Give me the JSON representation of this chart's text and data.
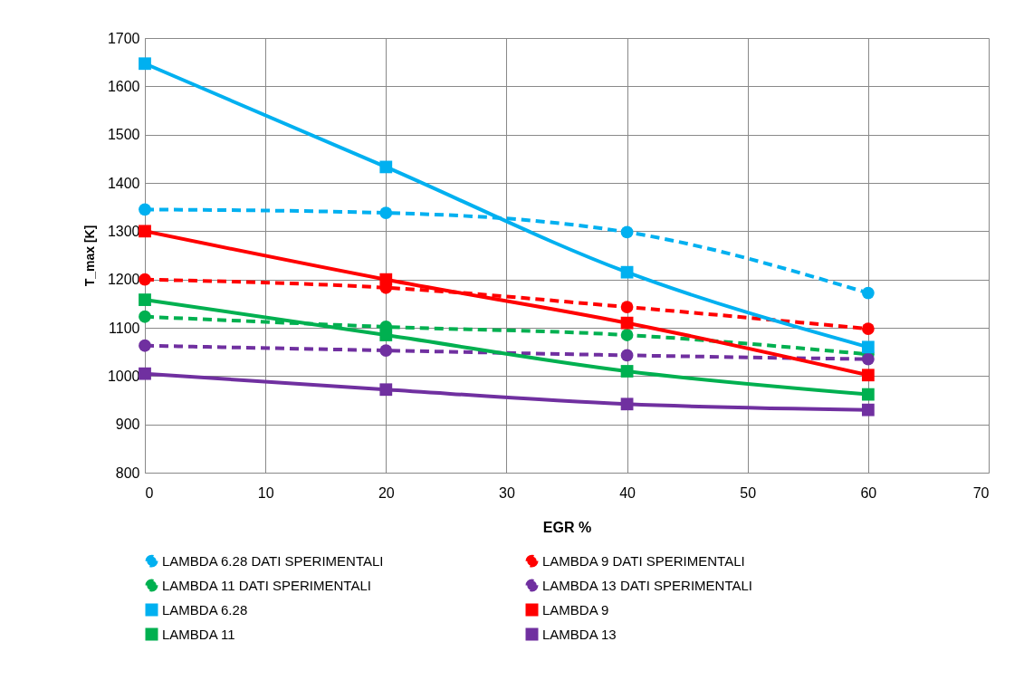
{
  "chart_data": {
    "type": "line",
    "xlabel": "EGR %",
    "ylabel": "T_max [K]",
    "x": [
      0,
      20,
      40,
      60
    ],
    "xlim": [
      0,
      70
    ],
    "xticks": [
      0,
      10,
      20,
      30,
      40,
      50,
      60,
      70
    ],
    "ylim": [
      800,
      1700
    ],
    "yticks": [
      800,
      900,
      1000,
      1100,
      1200,
      1300,
      1400,
      1500,
      1600,
      1700
    ],
    "grid": true,
    "legend": "bottom",
    "series": [
      {
        "name": "LAMBDA 6.28 DATI SPERIMENTALI",
        "color": "#00b0f0",
        "values": [
          1345,
          1338,
          1298,
          1172
        ],
        "marker": "circle",
        "line_style": "dashed"
      },
      {
        "name": "LAMBDA 9 DATI SPERIMENTALI",
        "color": "#ff0000",
        "values": [
          1200,
          1183,
          1143,
          1098
        ],
        "marker": "circle",
        "line_style": "dashed"
      },
      {
        "name": "LAMBDA 11 DATI SPERIMENTALI",
        "color": "#00b050",
        "values": [
          1123,
          1102,
          1085,
          1045
        ],
        "marker": "circle",
        "line_style": "dashed"
      },
      {
        "name": "LAMBDA 13  DATI SPERIMENTALI",
        "color": "#7030a0",
        "values": [
          1063,
          1053,
          1043,
          1035
        ],
        "marker": "circle",
        "line_style": "dashed"
      },
      {
        "name": "LAMBDA 6.28",
        "color": "#00b0f0",
        "values": [
          1647,
          1433,
          1215,
          1060
        ],
        "marker": "square",
        "line_style": "solid"
      },
      {
        "name": "LAMBDA 9",
        "color": "#ff0000",
        "values": [
          1300,
          1200,
          1110,
          1002
        ],
        "marker": "square",
        "line_style": "solid"
      },
      {
        "name": "LAMBDA 11",
        "color": "#00b050",
        "values": [
          1158,
          1085,
          1010,
          962
        ],
        "marker": "square",
        "line_style": "solid"
      },
      {
        "name": "LAMBDA 13",
        "color": "#7030a0",
        "values": [
          1005,
          972,
          942,
          930
        ],
        "marker": "square",
        "line_style": "solid"
      }
    ]
  }
}
